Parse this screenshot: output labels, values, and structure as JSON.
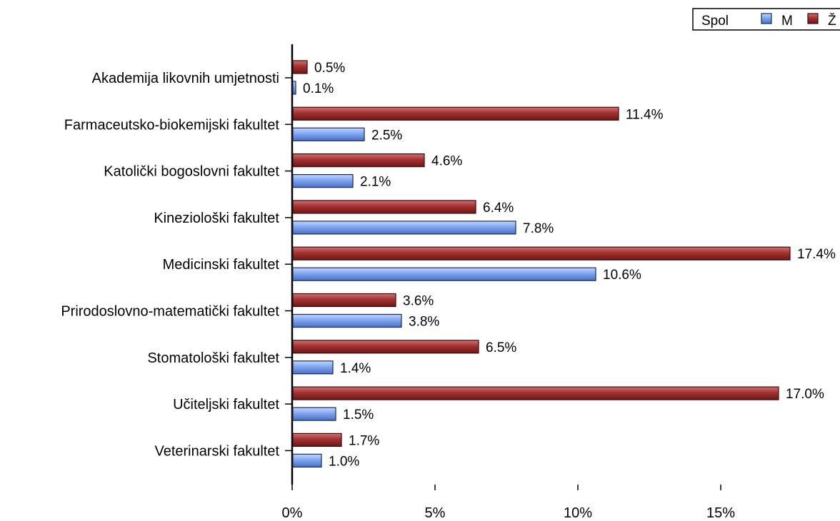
{
  "chart_data": {
    "type": "bar",
    "orientation": "horizontal",
    "categories": [
      "Akademija likovnih umjetnosti",
      "Farmaceutsko-biokemijski fakultet",
      "Katolički bogoslovni fakultet",
      "Kineziološki fakultet",
      "Medicinski fakultet",
      "Prirodoslovno-matematički fakultet",
      "Stomatološki fakultet",
      "Učiteljski fakultet",
      "Veterinarski fakultet"
    ],
    "series": [
      {
        "name": "Ž",
        "color": "#A23232",
        "values": [
          0.5,
          11.4,
          4.6,
          6.4,
          17.4,
          3.6,
          6.5,
          17.0,
          1.7
        ],
        "labels": [
          "0.5%",
          "11.4%",
          "4.6%",
          "6.4%",
          "17.4%",
          "3.6%",
          "6.5%",
          "17.0%",
          "1.7%"
        ]
      },
      {
        "name": "M",
        "color": "#7FA6F0",
        "values": [
          0.1,
          2.5,
          2.1,
          7.8,
          10.6,
          3.8,
          1.4,
          1.5,
          1.0
        ],
        "labels": [
          "0.1%",
          "2.5%",
          "2.1%",
          "7.8%",
          "10.6%",
          "3.8%",
          "1.4%",
          "1.5%",
          "1.0%"
        ]
      }
    ],
    "xlim": [
      0,
      19.2
    ],
    "xticks": [
      0,
      5,
      10,
      15
    ],
    "xtick_labels": [
      "0%",
      "5%",
      "10%",
      "15%"
    ],
    "legend": {
      "title": "Spol",
      "placement": "top-right",
      "entries": [
        "M",
        "Ž"
      ]
    },
    "grid": false
  }
}
